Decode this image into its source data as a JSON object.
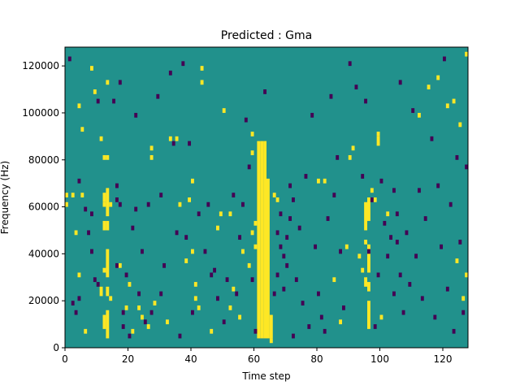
{
  "chart_data": {
    "type": "heatmap",
    "title": "Predicted : Gma",
    "xlabel": "Time step",
    "ylabel": "Frequency (Hz)",
    "xlim": [
      0,
      128
    ],
    "ylim": [
      0,
      128000
    ],
    "xticks": [
      "0",
      "20",
      "40",
      "60",
      "80",
      "100",
      "120"
    ],
    "yticks": [
      "0",
      "20000",
      "40000",
      "60000",
      "80000",
      "100000",
      "120000"
    ],
    "grid": false,
    "colors": {
      "background": "#21918c",
      "high": "#fde725",
      "low": "#440154"
    },
    "levels": [
      "low",
      "background",
      "high"
    ],
    "bin_width_hz": 2000,
    "cells_high": [
      [
        0,
        60000,
        2000
      ],
      [
        0,
        64000,
        2000
      ],
      [
        2,
        64000,
        2000
      ],
      [
        3,
        48000,
        2000
      ],
      [
        4,
        30000,
        2000
      ],
      [
        4,
        102000,
        2000
      ],
      [
        5,
        92000,
        2000
      ],
      [
        5,
        64000,
        2000
      ],
      [
        6,
        6000,
        2000
      ],
      [
        8,
        118000,
        2000
      ],
      [
        9,
        108000,
        2000
      ],
      [
        11,
        88000,
        2000
      ],
      [
        11,
        22000,
        4000
      ],
      [
        12,
        8000,
        6000
      ],
      [
        12,
        32000,
        2000
      ],
      [
        12,
        50000,
        4000
      ],
      [
        12,
        60000,
        2000
      ],
      [
        12,
        62000,
        4000
      ],
      [
        12,
        80000,
        2000
      ],
      [
        13,
        4000,
        12000
      ],
      [
        13,
        22000,
        4000
      ],
      [
        13,
        30000,
        12000
      ],
      [
        13,
        50000,
        4000
      ],
      [
        13,
        56000,
        12000
      ],
      [
        13,
        80000,
        2000
      ],
      [
        13,
        112000,
        2000
      ],
      [
        14,
        20000,
        2000
      ],
      [
        14,
        60000,
        2000
      ],
      [
        17,
        34000,
        2000
      ],
      [
        19,
        16000,
        2000
      ],
      [
        20,
        26000,
        2000
      ],
      [
        21,
        6000,
        2000
      ],
      [
        23,
        16000,
        2000
      ],
      [
        24,
        12000,
        2000
      ],
      [
        26,
        8000,
        2000
      ],
      [
        27,
        84000,
        2000
      ],
      [
        27,
        80000,
        2000
      ],
      [
        28,
        18000,
        2000
      ],
      [
        32,
        10000,
        2000
      ],
      [
        33,
        88000,
        2000
      ],
      [
        35,
        88000,
        2000
      ],
      [
        36,
        60000,
        2000
      ],
      [
        38,
        36000,
        2000
      ],
      [
        39,
        62000,
        2000
      ],
      [
        40,
        70000,
        2000
      ],
      [
        40,
        40000,
        2000
      ],
      [
        41,
        20000,
        2000
      ],
      [
        41,
        26000,
        2000
      ],
      [
        42,
        16000,
        2000
      ],
      [
        43,
        112000,
        2000
      ],
      [
        43,
        118000,
        2000
      ],
      [
        46,
        6000,
        2000
      ],
      [
        48,
        50000,
        2000
      ],
      [
        49,
        56000,
        2000
      ],
      [
        50,
        100000,
        2000
      ],
      [
        52,
        56000,
        2000
      ],
      [
        52,
        16000,
        2000
      ],
      [
        53,
        24000,
        2000
      ],
      [
        55,
        12000,
        2000
      ],
      [
        56,
        40000,
        2000
      ],
      [
        58,
        34000,
        2000
      ],
      [
        59,
        48000,
        2000
      ],
      [
        59,
        82000,
        2000
      ],
      [
        59,
        90000,
        2000
      ],
      [
        60,
        52000,
        2000
      ],
      [
        60,
        42000,
        2000
      ],
      [
        61,
        4000,
        84000
      ],
      [
        62,
        4000,
        84000
      ],
      [
        63,
        4000,
        84000
      ],
      [
        64,
        4000,
        68000
      ],
      [
        65,
        2000,
        2000
      ],
      [
        65,
        4000,
        10000
      ],
      [
        66,
        64000,
        2000
      ],
      [
        67,
        62000,
        2000
      ],
      [
        80,
        70000,
        2000
      ],
      [
        82,
        70000,
        2000
      ],
      [
        85,
        28000,
        2000
      ],
      [
        87,
        10000,
        2000
      ],
      [
        89,
        42000,
        2000
      ],
      [
        90,
        80000,
        2000
      ],
      [
        91,
        84000,
        2000
      ],
      [
        93,
        38000,
        2000
      ],
      [
        94,
        32000,
        2000
      ],
      [
        95,
        26000,
        4000
      ],
      [
        95,
        50000,
        12000
      ],
      [
        95,
        44000,
        2000
      ],
      [
        96,
        8000,
        12000
      ],
      [
        96,
        24000,
        4000
      ],
      [
        96,
        32000,
        12000
      ],
      [
        96,
        54000,
        10000
      ],
      [
        97,
        66000,
        2000
      ],
      [
        98,
        62000,
        2000
      ],
      [
        99,
        90000,
        2000
      ],
      [
        99,
        86000,
        4000
      ],
      [
        100,
        12000,
        2000
      ],
      [
        102,
        56000,
        2000
      ],
      [
        112,
        98000,
        2000
      ],
      [
        115,
        110000,
        2000
      ],
      [
        118,
        114000,
        2000
      ],
      [
        121,
        102000,
        2000
      ],
      [
        123,
        104000,
        2000
      ],
      [
        124,
        36000,
        2000
      ],
      [
        125,
        94000,
        2000
      ],
      [
        126,
        20000,
        2000
      ],
      [
        127,
        124000,
        2000
      ],
      [
        127,
        30000,
        2000
      ]
    ],
    "cells_low": [
      [
        1,
        122000,
        2000
      ],
      [
        2,
        18000,
        2000
      ],
      [
        3,
        14000,
        2000
      ],
      [
        4,
        70000,
        2000
      ],
      [
        4,
        20000,
        2000
      ],
      [
        6,
        58000,
        2000
      ],
      [
        7,
        48000,
        2000
      ],
      [
        8,
        40000,
        2000
      ],
      [
        8,
        56000,
        2000
      ],
      [
        9,
        28000,
        2000
      ],
      [
        10,
        26000,
        2000
      ],
      [
        10,
        104000,
        2000
      ],
      [
        15,
        104000,
        2000
      ],
      [
        16,
        34000,
        2000
      ],
      [
        16,
        62000,
        2000
      ],
      [
        16,
        68000,
        2000
      ],
      [
        17,
        60000,
        2000
      ],
      [
        17,
        112000,
        2000
      ],
      [
        18,
        8000,
        2000
      ],
      [
        18,
        14000,
        2000
      ],
      [
        19,
        30000,
        2000
      ],
      [
        20,
        4000,
        2000
      ],
      [
        21,
        50000,
        2000
      ],
      [
        22,
        58000,
        2000
      ],
      [
        22,
        98000,
        2000
      ],
      [
        23,
        22000,
        2000
      ],
      [
        24,
        40000,
        2000
      ],
      [
        25,
        10000,
        2000
      ],
      [
        26,
        60000,
        2000
      ],
      [
        27,
        14000,
        2000
      ],
      [
        29,
        106000,
        2000
      ],
      [
        30,
        22000,
        2000
      ],
      [
        30,
        64000,
        2000
      ],
      [
        31,
        34000,
        2000
      ],
      [
        33,
        116000,
        2000
      ],
      [
        34,
        86000,
        2000
      ],
      [
        35,
        48000,
        2000
      ],
      [
        36,
        4000,
        2000
      ],
      [
        37,
        120000,
        2000
      ],
      [
        38,
        46000,
        2000
      ],
      [
        39,
        86000,
        2000
      ],
      [
        40,
        14000,
        2000
      ],
      [
        42,
        56000,
        2000
      ],
      [
        44,
        40000,
        2000
      ],
      [
        45,
        60000,
        2000
      ],
      [
        46,
        30000,
        2000
      ],
      [
        47,
        32000,
        2000
      ],
      [
        48,
        20000,
        2000
      ],
      [
        50,
        10000,
        2000
      ],
      [
        51,
        28000,
        2000
      ],
      [
        53,
        64000,
        2000
      ],
      [
        54,
        22000,
        2000
      ],
      [
        55,
        46000,
        2000
      ],
      [
        56,
        60000,
        2000
      ],
      [
        57,
        96000,
        2000
      ],
      [
        58,
        76000,
        2000
      ],
      [
        59,
        28000,
        2000
      ],
      [
        60,
        6000,
        2000
      ],
      [
        63,
        108000,
        2000
      ],
      [
        66,
        22000,
        2000
      ],
      [
        67,
        48000,
        2000
      ],
      [
        67,
        30000,
        2000
      ],
      [
        68,
        42000,
        2000
      ],
      [
        68,
        56000,
        2000
      ],
      [
        69,
        24000,
        2000
      ],
      [
        69,
        38000,
        2000
      ],
      [
        70,
        46000,
        2000
      ],
      [
        70,
        34000,
        2000
      ],
      [
        71,
        54000,
        2000
      ],
      [
        71,
        68000,
        2000
      ],
      [
        72,
        4000,
        2000
      ],
      [
        72,
        62000,
        2000
      ],
      [
        73,
        28000,
        2000
      ],
      [
        74,
        50000,
        2000
      ],
      [
        75,
        18000,
        2000
      ],
      [
        76,
        72000,
        2000
      ],
      [
        77,
        8000,
        2000
      ],
      [
        78,
        98000,
        2000
      ],
      [
        79,
        42000,
        2000
      ],
      [
        80,
        22000,
        2000
      ],
      [
        81,
        12000,
        2000
      ],
      [
        82,
        6000,
        2000
      ],
      [
        83,
        54000,
        2000
      ],
      [
        84,
        106000,
        2000
      ],
      [
        85,
        64000,
        2000
      ],
      [
        86,
        80000,
        2000
      ],
      [
        87,
        40000,
        2000
      ],
      [
        88,
        16000,
        2000
      ],
      [
        90,
        120000,
        2000
      ],
      [
        92,
        110000,
        2000
      ],
      [
        94,
        72000,
        2000
      ],
      [
        95,
        104000,
        2000
      ],
      [
        96,
        40000,
        2000
      ],
      [
        97,
        62000,
        2000
      ],
      [
        98,
        8000,
        2000
      ],
      [
        99,
        30000,
        2000
      ],
      [
        100,
        70000,
        2000
      ],
      [
        101,
        52000,
        2000
      ],
      [
        102,
        38000,
        2000
      ],
      [
        103,
        46000,
        2000
      ],
      [
        104,
        66000,
        2000
      ],
      [
        104,
        22000,
        2000
      ],
      [
        105,
        56000,
        2000
      ],
      [
        105,
        44000,
        2000
      ],
      [
        106,
        112000,
        2000
      ],
      [
        106,
        30000,
        2000
      ],
      [
        107,
        14000,
        2000
      ],
      [
        108,
        48000,
        2000
      ],
      [
        109,
        26000,
        2000
      ],
      [
        110,
        100000,
        2000
      ],
      [
        111,
        38000,
        2000
      ],
      [
        112,
        66000,
        2000
      ],
      [
        113,
        20000,
        2000
      ],
      [
        114,
        54000,
        2000
      ],
      [
        116,
        88000,
        2000
      ],
      [
        117,
        12000,
        2000
      ],
      [
        118,
        68000,
        2000
      ],
      [
        119,
        42000,
        2000
      ],
      [
        120,
        122000,
        2000
      ],
      [
        121,
        24000,
        2000
      ],
      [
        122,
        60000,
        2000
      ],
      [
        123,
        6000,
        2000
      ],
      [
        124,
        80000,
        2000
      ],
      [
        125,
        44000,
        2000
      ],
      [
        126,
        14000,
        2000
      ],
      [
        127,
        76000,
        2000
      ]
    ]
  }
}
